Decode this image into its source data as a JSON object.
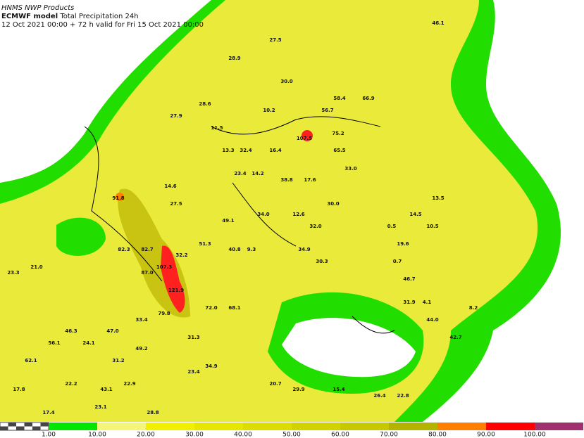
{
  "header": {
    "line1": "HNMS NWP Products",
    "model": "ECMWF model",
    "product": "Total Precipitation 24h",
    "line3": "12 Oct 2021 00:00 + 72 h valid for Fri 15 Oct 2021 00:00"
  },
  "map": {
    "labels": [
      "46.1",
      "27.5",
      "28.9",
      "30.0",
      "58.4",
      "66.9",
      "28.6",
      "10.2",
      "56.7",
      "27.9",
      "11.5",
      "75.2",
      "107.5",
      "13.3",
      "32.4",
      "16.4",
      "65.5",
      "33.0",
      "23.4",
      "14.2",
      "38.8",
      "17.6",
      "14.6",
      "13.5",
      "91.8",
      "27.5",
      "30.0",
      "34.0",
      "12.6",
      "14.5",
      "49.1",
      "32.0",
      "0.5",
      "10.5",
      "51.3",
      "40.8",
      "9.3",
      "34.9",
      "19.6",
      "82.3",
      "82.7",
      "32.2",
      "30.3",
      "0.7",
      "21.0",
      "23.3",
      "107.3",
      "87.0",
      "46.7",
      "121.9",
      "31.9",
      "4.1",
      "72.0",
      "68.1",
      "79.8",
      "33.4",
      "44.0",
      "8.2",
      "46.3",
      "47.0",
      "42.7",
      "31.3",
      "56.1",
      "24.1",
      "49.2",
      "62.1",
      "31.2",
      "34.9",
      "23.4",
      "22.2",
      "22.9",
      "20.7",
      "43.1",
      "17.8",
      "29.9",
      "15.4",
      "26.4",
      "22.8",
      "23.1",
      "17.4",
      "28.8"
    ]
  },
  "colorbar": {
    "labels": [
      "1.00",
      "10.00",
      "20.00",
      "30.00",
      "40.00",
      "50.00",
      "60.00",
      "70.00",
      "80.00",
      "90.00",
      "100.00"
    ],
    "colors": [
      "#00e600",
      "#f5f57a",
      "#f0f000",
      "#e6e600",
      "#dcdc00",
      "#d2d200",
      "#c8c800",
      "#b4b400",
      "#ff8000",
      "#ff0000",
      "#a0306e"
    ]
  }
}
